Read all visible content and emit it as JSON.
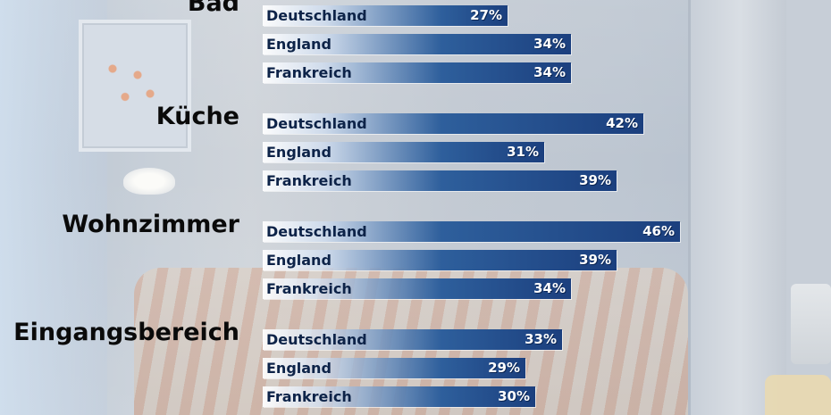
{
  "chart_data": {
    "type": "bar",
    "orientation": "horizontal",
    "title": "",
    "xlabel": "",
    "ylabel": "",
    "unit": "%",
    "xlim": [
      0,
      60
    ],
    "groups": [
      {
        "category": "Bad",
        "bars": [
          {
            "country": "Deutschland",
            "value": 27,
            "label": "27%"
          },
          {
            "country": "England",
            "value": 34,
            "label": "34%"
          },
          {
            "country": "Frankreich",
            "value": 34,
            "label": "34%"
          }
        ]
      },
      {
        "category": "Küche",
        "bars": [
          {
            "country": "Deutschland",
            "value": 42,
            "label": "42%"
          },
          {
            "country": "England",
            "value": 31,
            "label": "31%"
          },
          {
            "country": "Frankreich",
            "value": 39,
            "label": "39%"
          }
        ]
      },
      {
        "category": "Wohnzimmer",
        "bars": [
          {
            "country": "Deutschland",
            "value": 46,
            "label": "46%"
          },
          {
            "country": "England",
            "value": 39,
            "label": "39%"
          },
          {
            "country": "Frankreich",
            "value": 34,
            "label": "34%"
          }
        ]
      },
      {
        "category": "Eingangsbereich",
        "bars": [
          {
            "country": "Deutschland",
            "value": 33,
            "label": "33%"
          },
          {
            "country": "England",
            "value": 29,
            "label": "29%"
          },
          {
            "country": "Frankreich",
            "value": 30,
            "label": "30%"
          }
        ]
      }
    ],
    "colors": {
      "bar_dark": "#1b3f7e",
      "bar_mid": "#2e5f9c",
      "category_text": "#0a0a0a",
      "value_text": "#ffffff"
    }
  }
}
